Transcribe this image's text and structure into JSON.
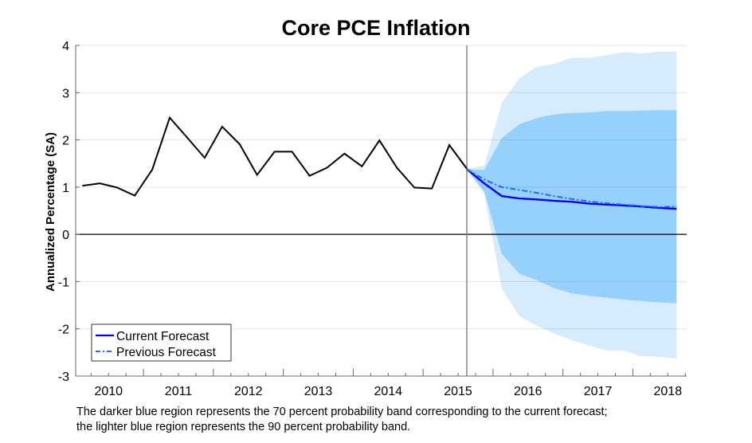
{
  "chart_data": {
    "type": "line",
    "title": "Core PCE Inflation",
    "xlabel": "",
    "ylabel": "Annualized Percentage (SA)",
    "ylim": [
      -3,
      4
    ],
    "yticks": [
      4,
      3,
      2,
      1,
      0,
      -1,
      -2,
      -3
    ],
    "xlim": [
      2010.03,
      2018.77
    ],
    "xtick_labels": [
      "2010",
      "2011",
      "2012",
      "2013",
      "2014",
      "2015",
      "2016",
      "2017",
      "2018"
    ],
    "grid": true,
    "legend_placement": "bottom-left",
    "history": {
      "quarters": [
        "2010Q1",
        "2010Q2",
        "2010Q3",
        "2010Q4",
        "2011Q1",
        "2011Q2",
        "2011Q3",
        "2011Q4",
        "2012Q1",
        "2012Q2",
        "2012Q3",
        "2012Q4",
        "2013Q1",
        "2013Q2",
        "2013Q3",
        "2013Q4",
        "2014Q1",
        "2014Q2",
        "2014Q3",
        "2014Q4",
        "2015Q1",
        "2015Q2",
        "2015Q3"
      ],
      "values": [
        1.03,
        1.08,
        0.99,
        0.82,
        1.37,
        2.47,
        2.05,
        1.62,
        2.28,
        1.91,
        1.26,
        1.75,
        1.75,
        1.24,
        1.41,
        1.71,
        1.44,
        1.99,
        1.41,
        0.99,
        0.97,
        1.89,
        1.39
      ],
      "color": "#000000"
    },
    "forecast_quarters": [
      "2015Q3",
      "2015Q4",
      "2016Q1",
      "2016Q2",
      "2016Q3",
      "2016Q4",
      "2017Q1",
      "2017Q2",
      "2017Q3",
      "2017Q4",
      "2018Q1",
      "2018Q2",
      "2018Q3"
    ],
    "series": [
      {
        "name": "Current Forecast",
        "style": "solid",
        "color": "#0000ff",
        "values": [
          1.38,
          1.08,
          0.81,
          0.76,
          0.74,
          0.71,
          0.69,
          0.65,
          0.63,
          0.61,
          0.59,
          0.56,
          0.54
        ]
      },
      {
        "name": "Previous Forecast",
        "style": "dash-dot",
        "color": "#1a6cff",
        "values": [
          1.38,
          1.16,
          1.0,
          0.94,
          0.88,
          0.81,
          0.75,
          0.7,
          0.66,
          0.63,
          0.6,
          0.58,
          0.59
        ]
      }
    ],
    "bands": [
      {
        "level": "90 percent",
        "color": "#d6ebfb",
        "upper": [
          1.38,
          1.46,
          2.78,
          3.3,
          3.55,
          3.61,
          3.74,
          3.74,
          3.79,
          3.86,
          3.83,
          3.87,
          3.87
        ],
        "lower": [
          1.38,
          0.85,
          -1.14,
          -1.73,
          -1.93,
          -2.1,
          -2.24,
          -2.35,
          -2.46,
          -2.46,
          -2.58,
          -2.59,
          -2.63
        ]
      },
      {
        "level": "70 percent",
        "color": "#96d0fc",
        "upper": [
          1.38,
          1.36,
          2.04,
          2.33,
          2.46,
          2.54,
          2.57,
          2.58,
          2.61,
          2.61,
          2.62,
          2.63,
          2.63
        ],
        "lower": [
          1.38,
          0.91,
          -0.41,
          -0.83,
          -0.97,
          -1.14,
          -1.25,
          -1.3,
          -1.34,
          -1.38,
          -1.41,
          -1.44,
          -1.46
        ]
      }
    ],
    "forecast_start": "2015Q3"
  },
  "caption": {
    "line1": "The darker blue region represents the 70 percent probability band corresponding to the current forecast;",
    "line2": "the lighter blue region represents the 90 percent probability band."
  }
}
